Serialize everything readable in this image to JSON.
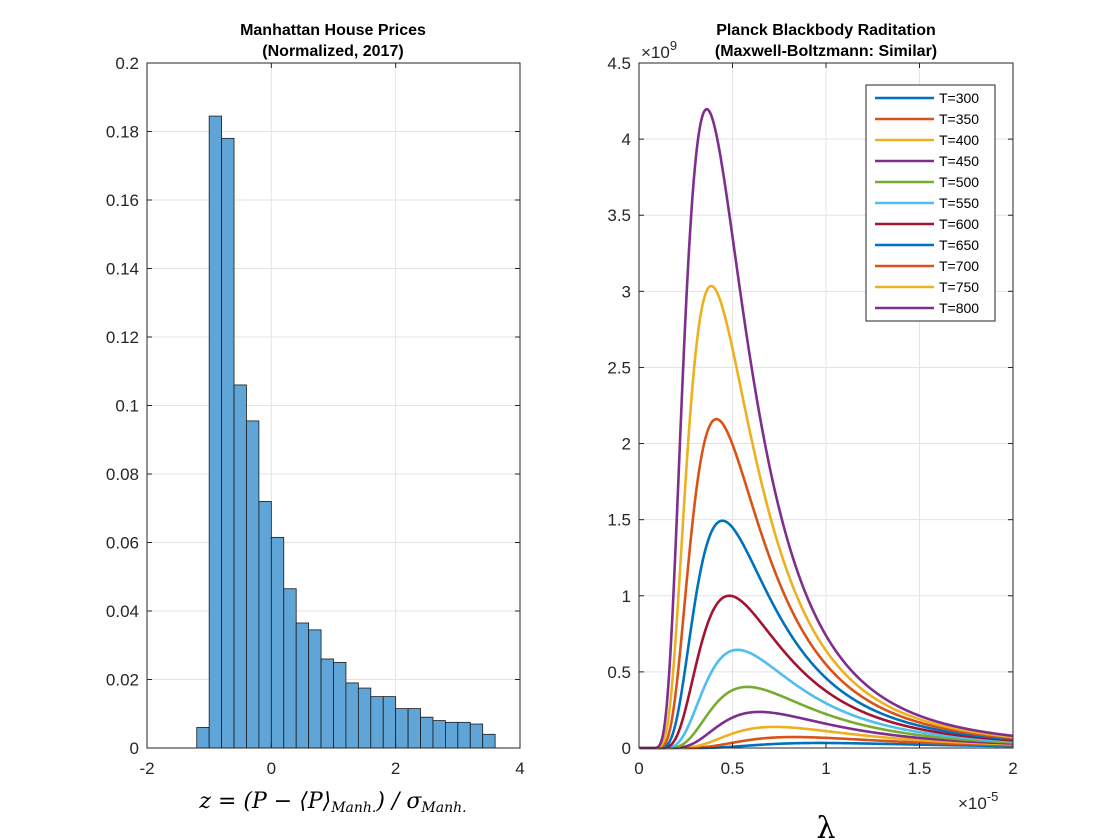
{
  "chart_data": [
    {
      "type": "bar",
      "title": [
        "Manhattan House Prices",
        "(Normalized, 2017)"
      ],
      "xlabel": "z = (P − ⟨P⟩_Manh.) / σ_Manh.",
      "xlabel_parts": {
        "lhs": "z = (P − ⟨P⟩",
        "sub1": "Manh.",
        "mid": ") / σ",
        "sub2": "Manh."
      },
      "ylabel": "",
      "xlim": [
        -2,
        4
      ],
      "ylim": [
        0,
        0.2
      ],
      "xticks": [
        "-2",
        "0",
        "2",
        "4"
      ],
      "yticks": [
        "0",
        "0.02",
        "0.04",
        "0.06",
        "0.08",
        "0.1",
        "0.12",
        "0.14",
        "0.16",
        "0.18",
        "0.2"
      ],
      "grid": true,
      "bin_width": 0.2,
      "bin_edges_start": -1.2,
      "values": [
        0.006,
        0.1845,
        0.178,
        0.106,
        0.0955,
        0.072,
        0.0615,
        0.0465,
        0.0365,
        0.0345,
        0.026,
        0.025,
        0.019,
        0.0175,
        0.015,
        0.015,
        0.0115,
        0.0115,
        0.009,
        0.008,
        0.0075,
        0.0075,
        0.007,
        0.004
      ],
      "bar_color": "#5fa5d8"
    },
    {
      "type": "line",
      "title": [
        "Planck Blackbody Raditation",
        "(Maxwell-Boltzmann: Similar)"
      ],
      "xlabel": "λ",
      "xlim": [
        0,
        2
      ],
      "ylim": [
        0,
        4.5
      ],
      "x_exponent_base": "×10",
      "x_exponent": "-5",
      "y_exponent_base": "×10",
      "y_exponent": "9",
      "xticks": [
        "0",
        "0.5",
        "1",
        "1.5",
        "2"
      ],
      "yticks": [
        "0",
        "0.5",
        "1",
        "1.5",
        "2",
        "2.5",
        "3",
        "3.5",
        "4",
        "4.5"
      ],
      "grid": true,
      "legend_position": "top-right",
      "series": [
        {
          "name": "T=300",
          "color": "#0072BD",
          "temperature": 300,
          "peak_x": 0.966,
          "peak_y": 0.033
        },
        {
          "name": "T=350",
          "color": "#D95319",
          "temperature": 350,
          "peak_x": 0.828,
          "peak_y": 0.072
        },
        {
          "name": "T=400",
          "color": "#EDB120",
          "temperature": 400,
          "peak_x": 0.724,
          "peak_y": 0.139
        },
        {
          "name": "T=450",
          "color": "#7E2F8E",
          "temperature": 450,
          "peak_x": 0.644,
          "peak_y": 0.237
        },
        {
          "name": "T=500",
          "color": "#77AC30",
          "temperature": 500,
          "peak_x": 0.58,
          "peak_y": 0.4
        },
        {
          "name": "T=550",
          "color": "#4DBEEE",
          "temperature": 550,
          "peak_x": 0.527,
          "peak_y": 0.644
        },
        {
          "name": "T=600",
          "color": "#A2142F",
          "temperature": 600,
          "peak_x": 0.483,
          "peak_y": 1.0
        },
        {
          "name": "T=650",
          "color": "#0072BD",
          "temperature": 650,
          "peak_x": 0.446,
          "peak_y": 1.49
        },
        {
          "name": "T=700",
          "color": "#D95319",
          "temperature": 700,
          "peak_x": 0.414,
          "peak_y": 2.16
        },
        {
          "name": "T=750",
          "color": "#EDB120",
          "temperature": 750,
          "peak_x": 0.386,
          "peak_y": 3.05
        },
        {
          "name": "T=800",
          "color": "#7E2F8E",
          "temperature": 800,
          "peak_x": 0.362,
          "peak_y": 4.21
        }
      ]
    }
  ]
}
